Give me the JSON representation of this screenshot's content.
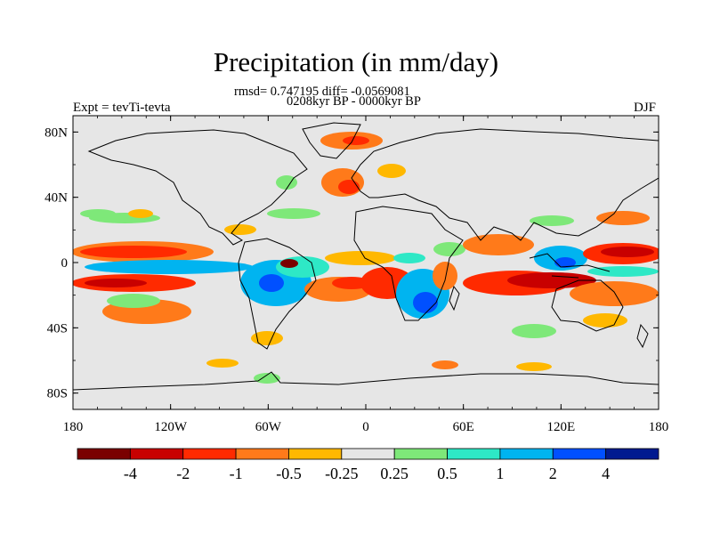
{
  "title": "Precipitation (in mm/day)",
  "stats_line": "rmsd= 0.747195 diff= -0.0569081",
  "period_line": "0208kyr BP - 0000kyr BP",
  "left_label": "Expt = tevTi-tevta",
  "right_label": "DJF",
  "colors": {
    "land_sea_fill": "#e6e6e6",
    "coastline": "#000000",
    "bins": [
      "#7a0000",
      "#c80000",
      "#ff2a00",
      "#ff7a1a",
      "#ffb800",
      "#e6e6e6",
      "#7ee879",
      "#2ee8c6",
      "#00b4f0",
      "#0050ff",
      "#001a90"
    ]
  },
  "map": {
    "lon_ticks": [
      "180",
      "120W",
      "60W",
      "0",
      "60E",
      "120E",
      "180"
    ],
    "lat_ticks": [
      "80N",
      "40N",
      "0",
      "40S",
      "80S"
    ]
  },
  "colorbar": {
    "labels": [
      "-4",
      "-2",
      "-1",
      "-0.5",
      "-0.25",
      "0.25",
      "0.5",
      "1",
      "2",
      "4"
    ]
  }
}
